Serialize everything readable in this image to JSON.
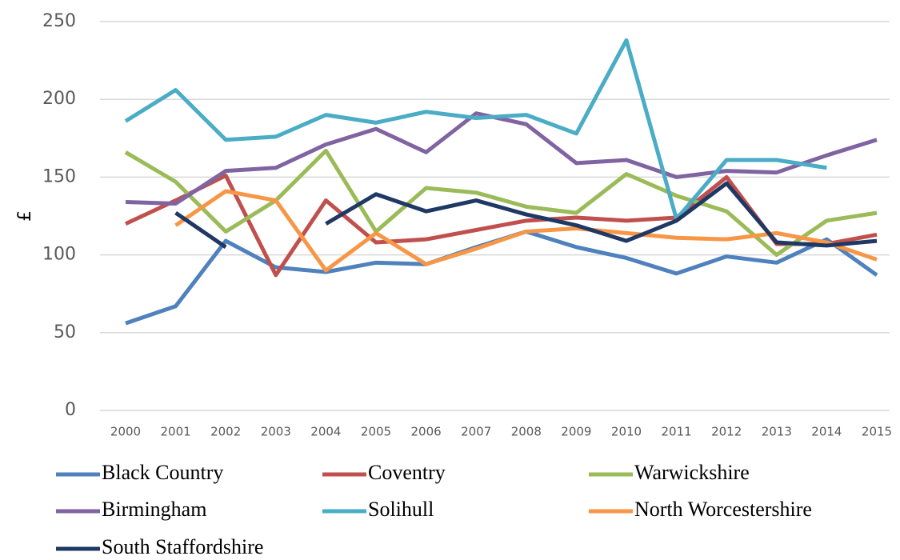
{
  "chart_data": {
    "type": "line",
    "y_label": "£",
    "categories": [
      "2000",
      "2001",
      "2002",
      "2003",
      "2004",
      "2005",
      "2006",
      "2007",
      "2008",
      "2009",
      "2010",
      "2011",
      "2012",
      "2013",
      "2014",
      "2015"
    ],
    "ylim": [
      0,
      250
    ],
    "yticks": [
      0,
      50,
      100,
      150,
      200,
      250
    ],
    "grid": true,
    "legend": "bottom",
    "series": [
      {
        "name": "Black Country",
        "color": "#4f81bd",
        "values": [
          56,
          67,
          109,
          92,
          89,
          95,
          94,
          105,
          115,
          105,
          98,
          88,
          99,
          95,
          110,
          87
        ]
      },
      {
        "name": "Coventry",
        "color": "#c0504d",
        "values": [
          120,
          135,
          151,
          87,
          135,
          108,
          110,
          116,
          122,
          124,
          122,
          124,
          150,
          107,
          107,
          113
        ]
      },
      {
        "name": "Warwickshire",
        "color": "#9bbb59",
        "values": [
          166,
          147,
          115,
          135,
          167,
          115,
          143,
          140,
          131,
          127,
          152,
          138,
          128,
          100,
          122,
          127
        ]
      },
      {
        "name": "Birmingham",
        "color": "#8064a2",
        "values": [
          134,
          133,
          154,
          156,
          171,
          181,
          166,
          191,
          184,
          159,
          161,
          150,
          154,
          153,
          164,
          174
        ]
      },
      {
        "name": "Solihull",
        "color": "#4bacc6",
        "values": [
          186,
          206,
          174,
          176,
          190,
          185,
          192,
          188,
          190,
          178,
          238,
          123,
          161,
          161,
          156,
          null
        ]
      },
      {
        "name": "North Worcestershire",
        "color": "#f79646",
        "values": [
          null,
          119,
          141,
          135,
          90,
          114,
          94,
          104,
          115,
          117,
          114,
          111,
          110,
          114,
          108,
          97
        ]
      },
      {
        "name": "South Staffordshire",
        "color": "#1f3864",
        "values": [
          null,
          127,
          105,
          null,
          120,
          139,
          128,
          135,
          126,
          119,
          109,
          122,
          146,
          108,
          106,
          109
        ]
      }
    ]
  }
}
